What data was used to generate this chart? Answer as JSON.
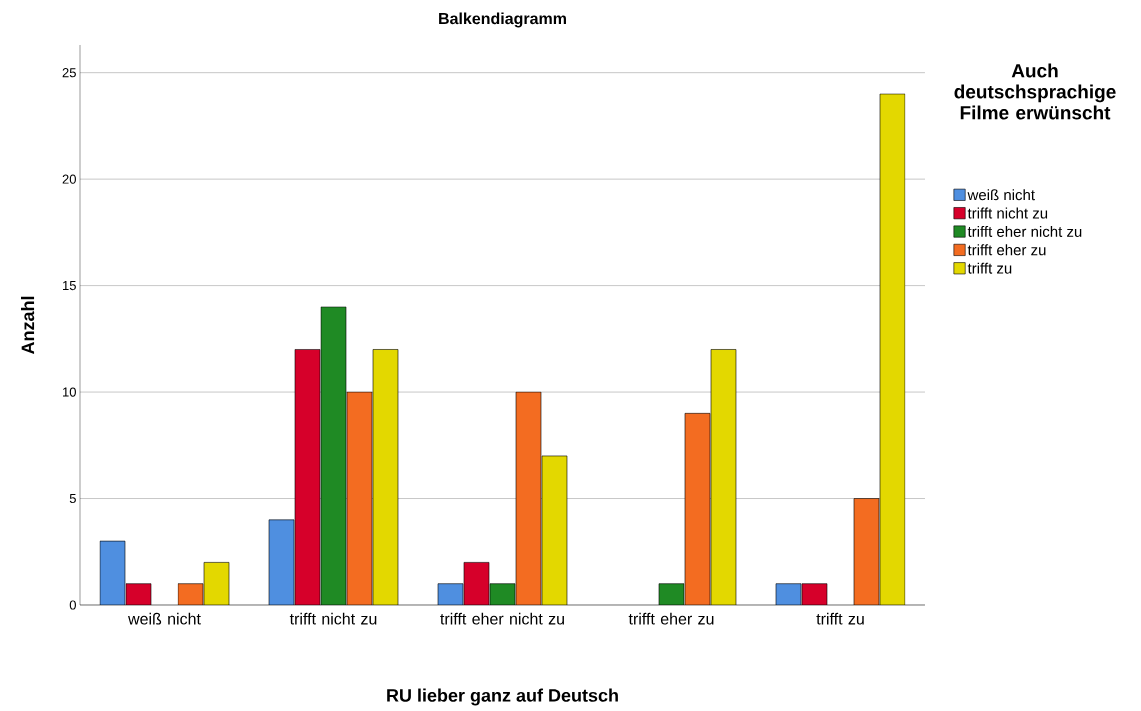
{
  "chart_data": {
    "type": "bar",
    "title": "Balkendiagramm",
    "xlabel": "RU lieber ganz auf Deutsch",
    "ylabel": "Anzahl",
    "legend_title": "Auch deutschsprachige Filme erwünscht",
    "categories": [
      "weiß nicht",
      "trifft nicht zu",
      "trifft eher nicht zu",
      "trifft eher zu",
      "trifft zu"
    ],
    "series": [
      {
        "name": "weiß nicht",
        "color": "#4f8fe0",
        "values": [
          3,
          4,
          1,
          null,
          1
        ]
      },
      {
        "name": "trifft nicht zu",
        "color": "#d6002a",
        "values": [
          1,
          12,
          2,
          null,
          1
        ]
      },
      {
        "name": "trifft eher nicht zu",
        "color": "#1f8a24",
        "values": [
          null,
          14,
          1,
          1,
          null
        ]
      },
      {
        "name": "trifft eher zu",
        "color": "#f36c21",
        "values": [
          1,
          10,
          10,
          9,
          5
        ]
      },
      {
        "name": "trifft zu",
        "color": "#e3d800",
        "values": [
          2,
          12,
          7,
          12,
          24
        ]
      }
    ],
    "ylim": [
      0,
      26.3
    ],
    "yticks": [
      0,
      5,
      10,
      15,
      20,
      25
    ],
    "grid": "y",
    "legend": "top right"
  }
}
